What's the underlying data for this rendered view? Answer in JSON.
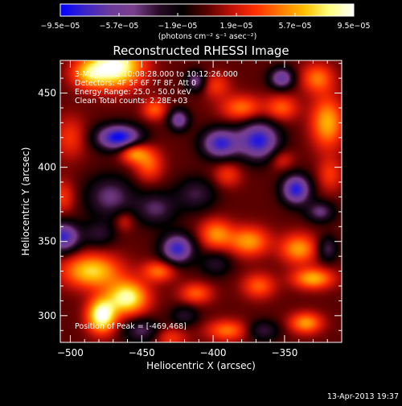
{
  "chart_data": {
    "type": "heatmap",
    "title": "Reconstructed RHESSI Image",
    "xlabel": "Heliocentric X (arcsec)",
    "ylabel": "Heliocentric Y (arcsec)",
    "xlim": [
      -507,
      -310
    ],
    "ylim": [
      282,
      472
    ],
    "xticks": [
      -500,
      -450,
      -400,
      -350
    ],
    "xtick_labels": [
      "−500",
      "−450",
      "−400",
      "−350"
    ],
    "yticks": [
      300,
      350,
      400,
      450
    ],
    "ytick_labels": [
      "300",
      "350",
      "400",
      "450"
    ],
    "colorbar": {
      "range": [
        -9.5e-05,
        9.5e-05
      ],
      "ticks": [
        -9.5e-05,
        -5.7e-05,
        -1.9e-05,
        1.9e-05,
        5.7e-05,
        9.5e-05
      ],
      "tick_labels": [
        "−9.5e−05",
        "−5.7e−05",
        "−1.9e−05",
        "1.9e−05",
        "5.7e−05",
        "9.5e−05"
      ],
      "unit_label": "(photons cm⁻² s⁻¹ asec⁻²)"
    },
    "info_lines": [
      "3-May-2002 10:08:28.000 to 10:12:26.000",
      "Detectors: 4F 5F 6F 7F 8F, Att 0",
      "Energy Range: 25.0 - 50.0 keV",
      "Clean     Total counts: 2.28E+03"
    ],
    "peak_text": "Position of Peak = [-469,468]",
    "footer_date": "13-Apr-2013 19:37",
    "colors": {
      "background": "#000000",
      "foreground": "#ffffff",
      "colormap": [
        "#0000ff",
        "#3a24c8",
        "#6a3a9c",
        "#7a3f8e",
        "#2a0c28",
        "#000000",
        "#5a0000",
        "#c01008",
        "#ff3000",
        "#ff7a00",
        "#ffc000",
        "#ffff80",
        "#ffffff"
      ]
    },
    "features": [
      {
        "kind": "blob",
        "x": -468,
        "y": 468,
        "sx": 13,
        "sy": 10,
        "value": 9.5e-05
      },
      {
        "kind": "blob",
        "x": -487,
        "y": 463,
        "sx": 9,
        "sy": 7,
        "value": 5e-05
      },
      {
        "kind": "blob",
        "x": -441,
        "y": 439,
        "sx": 6,
        "sy": 5,
        "value": 4e-05
      },
      {
        "kind": "blob",
        "x": -456,
        "y": 410,
        "sx": 7,
        "sy": 5,
        "value": 5.5e-05
      },
      {
        "kind": "blob",
        "x": -445,
        "y": 402,
        "sx": 7,
        "sy": 8,
        "value": 4e-05
      },
      {
        "kind": "blob",
        "x": -398,
        "y": 455,
        "sx": 7,
        "sy": 6,
        "value": 3e-05
      },
      {
        "kind": "blob",
        "x": -380,
        "y": 440,
        "sx": 10,
        "sy": 6,
        "value": 4.5e-05
      },
      {
        "kind": "blob",
        "x": -352,
        "y": 440,
        "sx": 8,
        "sy": 6,
        "value": 4e-05
      },
      {
        "kind": "blob",
        "x": -327,
        "y": 460,
        "sx": 8,
        "sy": 7,
        "value": 4.5e-05
      },
      {
        "kind": "blob",
        "x": -320,
        "y": 430,
        "sx": 8,
        "sy": 12,
        "value": 6e-05
      },
      {
        "kind": "blob",
        "x": -318,
        "y": 395,
        "sx": 6,
        "sy": 8,
        "value": 3e-05
      },
      {
        "kind": "blob",
        "x": -500,
        "y": 420,
        "sx": 8,
        "sy": 10,
        "value": 3e-05
      },
      {
        "kind": "blob",
        "x": -505,
        "y": 380,
        "sx": 6,
        "sy": 8,
        "value": 3e-05
      },
      {
        "kind": "blob",
        "x": -485,
        "y": 330,
        "sx": 14,
        "sy": 8,
        "value": 7e-05
      },
      {
        "kind": "blob",
        "x": -460,
        "y": 312,
        "sx": 10,
        "sy": 8,
        "value": 8.5e-05
      },
      {
        "kind": "blob",
        "x": -478,
        "y": 300,
        "sx": 7,
        "sy": 8,
        "value": 9.5e-05
      },
      {
        "kind": "blob",
        "x": -438,
        "y": 330,
        "sx": 8,
        "sy": 5,
        "value": 4.5e-05
      },
      {
        "kind": "blob",
        "x": -430,
        "y": 285,
        "sx": 8,
        "sy": 5,
        "value": 3e-05
      },
      {
        "kind": "blob",
        "x": -398,
        "y": 355,
        "sx": 8,
        "sy": 7,
        "value": 5e-05
      },
      {
        "kind": "blob",
        "x": -375,
        "y": 350,
        "sx": 10,
        "sy": 7,
        "value": 5.5e-05
      },
      {
        "kind": "blob",
        "x": -340,
        "y": 345,
        "sx": 9,
        "sy": 7,
        "value": 5.5e-05
      },
      {
        "kind": "blob",
        "x": -330,
        "y": 325,
        "sx": 10,
        "sy": 5,
        "value": 6e-05
      },
      {
        "kind": "blob",
        "x": -368,
        "y": 320,
        "sx": 8,
        "sy": 6,
        "value": 4e-05
      },
      {
        "kind": "blob",
        "x": -390,
        "y": 290,
        "sx": 10,
        "sy": 5,
        "value": 4.5e-05
      },
      {
        "kind": "blob",
        "x": -335,
        "y": 295,
        "sx": 8,
        "sy": 5,
        "value": 5.5e-05
      },
      {
        "kind": "blob",
        "x": -390,
        "y": 395,
        "sx": 7,
        "sy": 6,
        "value": 3e-05
      },
      {
        "kind": "blob",
        "x": -412,
        "y": 315,
        "sx": 8,
        "sy": 5,
        "value": 4e-05
      },
      {
        "kind": "blob",
        "x": -352,
        "y": 405,
        "sx": 6,
        "sy": 5,
        "value": 2.5e-05
      },
      {
        "kind": "blob",
        "x": -462,
        "y": 364,
        "sx": 5,
        "sy": 5,
        "value": 2.5e-05
      },
      {
        "kind": "blob",
        "x": -466,
        "y": 420,
        "sx": 11,
        "sy": 6,
        "value": -9.5e-05
      },
      {
        "kind": "blob",
        "x": -424,
        "y": 432,
        "sx": 5,
        "sy": 5,
        "value": -6e-05
      },
      {
        "kind": "blob",
        "x": -412,
        "y": 458,
        "sx": 5,
        "sy": 5,
        "value": -5e-05
      },
      {
        "kind": "blob",
        "x": -395,
        "y": 416,
        "sx": 9,
        "sy": 7,
        "value": -8e-05
      },
      {
        "kind": "blob",
        "x": -368,
        "y": 418,
        "sx": 10,
        "sy": 9,
        "value": -8.5e-05
      },
      {
        "kind": "blob",
        "x": -352,
        "y": 460,
        "sx": 6,
        "sy": 5,
        "value": -6.5e-05
      },
      {
        "kind": "blob",
        "x": -342,
        "y": 385,
        "sx": 7,
        "sy": 7,
        "value": -8.5e-05
      },
      {
        "kind": "blob",
        "x": -325,
        "y": 370,
        "sx": 7,
        "sy": 5,
        "value": -4.5e-05
      },
      {
        "kind": "blob",
        "x": -425,
        "y": 345,
        "sx": 8,
        "sy": 7,
        "value": -8e-05
      },
      {
        "kind": "blob",
        "x": -505,
        "y": 353,
        "sx": 8,
        "sy": 7,
        "value": -8e-05
      },
      {
        "kind": "blob",
        "x": -472,
        "y": 380,
        "sx": 12,
        "sy": 10,
        "value": -4.5e-05
      },
      {
        "kind": "blob",
        "x": -440,
        "y": 372,
        "sx": 10,
        "sy": 8,
        "value": -4e-05
      },
      {
        "kind": "blob",
        "x": -412,
        "y": 382,
        "sx": 10,
        "sy": 8,
        "value": -3.5e-05
      },
      {
        "kind": "blob",
        "x": -450,
        "y": 290,
        "sx": 9,
        "sy": 6,
        "value": -4e-05
      },
      {
        "kind": "blob",
        "x": -365,
        "y": 290,
        "sx": 8,
        "sy": 5,
        "value": -3.5e-05
      },
      {
        "kind": "blob",
        "x": -320,
        "y": 345,
        "sx": 5,
        "sy": 6,
        "value": -4e-05
      },
      {
        "kind": "blob",
        "x": -398,
        "y": 335,
        "sx": 8,
        "sy": 6,
        "value": -3e-05
      },
      {
        "kind": "blob",
        "x": -480,
        "y": 355,
        "sx": 8,
        "sy": 6,
        "value": -3e-05
      },
      {
        "kind": "blob",
        "x": -420,
        "y": 300,
        "sx": 7,
        "sy": 5,
        "value": -3e-05
      }
    ]
  }
}
